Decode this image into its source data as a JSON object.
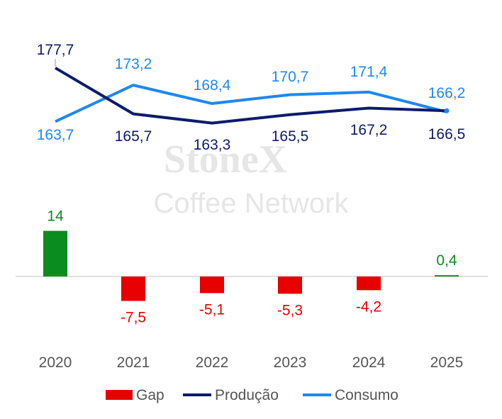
{
  "chart_data": {
    "type": "line+bar",
    "categories": [
      "2020",
      "2021",
      "2022",
      "2023",
      "2024",
      "2025"
    ],
    "series": [
      {
        "name": "Gap",
        "type": "bar",
        "values": [
          14,
          -7.5,
          -5.1,
          -5.3,
          -4.2,
          0.4
        ],
        "labels": [
          "14",
          "-7,5",
          "-5,1",
          "-5,3",
          "-4,2",
          "0,4"
        ]
      },
      {
        "name": "Produção",
        "type": "line",
        "values": [
          177.7,
          165.7,
          163.3,
          165.5,
          167.2,
          166.5
        ],
        "labels": [
          "177,7",
          "165,7",
          "163,3",
          "165,5",
          "167,2",
          "166,5"
        ]
      },
      {
        "name": "Consumo",
        "type": "line",
        "values": [
          163.7,
          173.2,
          168.4,
          170.7,
          171.4,
          166.2
        ],
        "labels": [
          "163,7",
          "173,2",
          "168,4",
          "170,7",
          "171,4",
          "166,2"
        ]
      }
    ],
    "legend_position": "bottom",
    "grid": false
  },
  "colors": {
    "gap_positive": "#0b8c1e",
    "gap_negative": "#e60000",
    "producao": "#0d1b6b",
    "consumo": "#1e88f0",
    "label_positive": "#0b8c1e",
    "label_negative": "#e60000",
    "axis": "#bfbfbf"
  },
  "watermark": {
    "line1": "StoneX",
    "line2": "Coffee Network"
  }
}
